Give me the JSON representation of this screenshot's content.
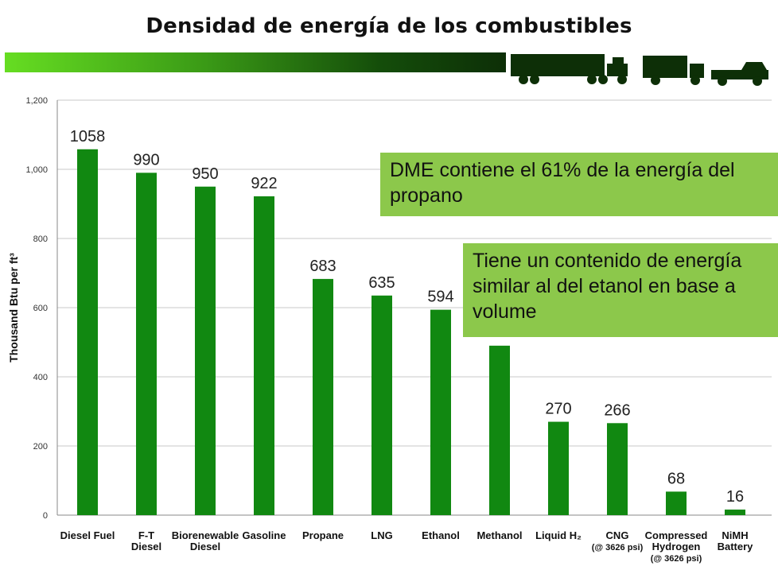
{
  "header": {
    "title": "Densidad de energía de los combustibles"
  },
  "colors": {
    "bar": "#118811",
    "callout": "#8cc84b",
    "header_gradient_start": "#66dd22",
    "header_gradient_end": "#0d2f07"
  },
  "icons": [
    "tractor-trailer-icon",
    "box-truck-icon",
    "pickup-truck-icon"
  ],
  "callouts": {
    "dme": "DME contiene el 61% de la energía del propano",
    "ethanol": "Tiene un contenido de energía similar al del etanol en base a volume"
  },
  "chart_data": {
    "type": "bar",
    "title": "",
    "ylabel": "Thousand Btu per ft³",
    "xlabel": "",
    "ylim": [
      0,
      1200
    ],
    "yticks": [
      "0",
      "200",
      "400",
      "600",
      "800",
      "1,000",
      "1,200"
    ],
    "grid": true,
    "categories": [
      {
        "label": [
          "Diesel Fuel"
        ]
      },
      {
        "label": [
          "F-T",
          "Diesel"
        ]
      },
      {
        "label": [
          "Biorenewable",
          "Diesel"
        ]
      },
      {
        "label": [
          "Gasoline"
        ]
      },
      {
        "label": [
          "Propane"
        ]
      },
      {
        "label": [
          "LNG"
        ]
      },
      {
        "label": [
          "Ethanol"
        ]
      },
      {
        "label": [
          "Methanol"
        ]
      },
      {
        "label": [
          "Liquid H₂"
        ]
      },
      {
        "label": [
          "CNG"
        ],
        "sub": "(@ 3626 psi)"
      },
      {
        "label": [
          "Compressed",
          "Hydrogen"
        ],
        "sub": "(@ 3626 psi)"
      },
      {
        "label": [
          "NiMH",
          "Battery"
        ]
      }
    ],
    "values": [
      1058,
      990,
      950,
      922,
      683,
      635,
      594,
      490,
      270,
      266,
      68,
      16
    ],
    "data_labels": [
      "1058",
      "990",
      "950",
      "922",
      "683",
      "635",
      "594",
      "",
      "270",
      "266",
      "68",
      "16"
    ]
  }
}
